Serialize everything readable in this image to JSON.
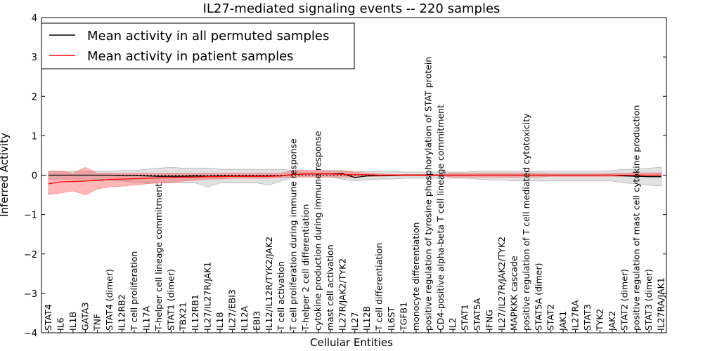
{
  "chart_data": {
    "type": "line",
    "title": "IL27-mediated signaling events -- 220 samples",
    "xlabel": "Cellular Entities",
    "ylabel": "Inferred Activity",
    "ylim": [
      -4,
      4
    ],
    "yticks": [
      "4",
      "3",
      "2",
      "1",
      "0",
      "−1",
      "−2",
      "−3",
      "−4"
    ],
    "ytick_values": [
      4,
      3,
      2,
      1,
      0,
      -1,
      -2,
      -3,
      -4
    ],
    "legend_position": "top-left",
    "legend": [
      {
        "label": "Mean activity in all permuted samples",
        "color": "#000000"
      },
      {
        "label": "Mean activity in patient samples",
        "color": "#ff0000"
      }
    ],
    "categories": [
      "STAT4",
      "IL6",
      "IL1B",
      "GATA3",
      "TNF",
      "STAT4 (dimer)",
      "IL12RB2",
      "T cell proliferation",
      "IL17A",
      "T-helper cell lineage commitment",
      "STAT1 (dimer)",
      "TBX21",
      "IL12RB1",
      "IL27/IL27R/JAK1",
      "IL18",
      "IL27/EBI3",
      "IL12A",
      "EBI3",
      "IL12/IL12R/TYK2/JAK2",
      "T cell activation",
      "T cell proliferation during immune response",
      "T-helper 2 cell differentiation",
      "cytokine production during immune response",
      "mast cell activation",
      "IL27R/JAK2/TYK2",
      "IL27",
      "IL12B",
      "T cell differentiation",
      "IL6ST",
      "TGFB1",
      "monocyte differentiation",
      "positive regulation of tyrosine phosphorylation of STAT protein",
      "CD4-positive alpha-beta T cell lineage commitment",
      "IL2",
      "STAT1",
      "STAT5A",
      "IFNG",
      "IL27/IL27R/JAK2/TYK2",
      "MAPKKK cascade",
      "positive regulation of T cell mediated cytotoxicity",
      "STAT5A (dimer)",
      "STAT2",
      "JAK1",
      "IL27RA",
      "STAT3",
      "TYK2",
      "JAK2",
      "STAT2 (dimer)",
      "positive regulation of mast cell cytokine production",
      "STAT3 (dimer)",
      "IL27RA/JAK1"
    ],
    "series": [
      {
        "name": "Mean activity in all permuted samples",
        "color": "#000000",
        "values": [
          0,
          0,
          0,
          0,
          0,
          0,
          -0.01,
          -0.01,
          -0.02,
          -0.03,
          -0.03,
          -0.03,
          -0.02,
          -0.03,
          -0.02,
          -0.02,
          -0.02,
          -0.02,
          -0.02,
          -0.02,
          0.02,
          0.03,
          0.03,
          0.03,
          0.04,
          -0.06,
          -0.02,
          -0.01,
          -0.01,
          0,
          0,
          0,
          0,
          0,
          0,
          0,
          0,
          0,
          0,
          0,
          0,
          0,
          0,
          0,
          0,
          0,
          0,
          -0.02,
          -0.03,
          -0.04,
          -0.04
        ],
        "band_upper": [
          0.1,
          0.1,
          0.1,
          0.1,
          0.1,
          0.1,
          0.12,
          0.12,
          0.15,
          0.18,
          0.2,
          0.18,
          0.18,
          0.18,
          0.15,
          0.15,
          0.15,
          0.15,
          0.15,
          0.15,
          0.12,
          0.12,
          0.12,
          0.12,
          0.12,
          0.08,
          0.1,
          0.1,
          0.1,
          0.08,
          0.08,
          0.08,
          0.08,
          0.08,
          0.08,
          0.1,
          0.1,
          0.1,
          0.1,
          0.1,
          0.1,
          0.1,
          0.1,
          0.1,
          0.1,
          0.1,
          0.12,
          0.15,
          0.15,
          0.18,
          0.2
        ],
        "band_lower": [
          -0.1,
          -0.1,
          -0.1,
          -0.1,
          -0.1,
          -0.12,
          -0.15,
          -0.18,
          -0.2,
          -0.2,
          -0.2,
          -0.2,
          -0.2,
          -0.3,
          -0.2,
          -0.2,
          -0.2,
          -0.2,
          -0.25,
          -0.15,
          -0.05,
          -0.05,
          -0.05,
          -0.05,
          -0.1,
          -0.15,
          -0.12,
          -0.1,
          -0.1,
          -0.08,
          -0.08,
          -0.08,
          -0.08,
          -0.08,
          -0.08,
          -0.1,
          -0.12,
          -0.12,
          -0.15,
          -0.15,
          -0.15,
          -0.15,
          -0.15,
          -0.15,
          -0.15,
          -0.15,
          -0.15,
          -0.2,
          -0.22,
          -0.25,
          -0.28
        ]
      },
      {
        "name": "Mean activity in patient samples",
        "color": "#ff0000",
        "values": [
          -0.22,
          -0.17,
          -0.16,
          -0.15,
          -0.13,
          -0.11,
          -0.1,
          -0.09,
          -0.08,
          -0.07,
          -0.06,
          -0.05,
          -0.05,
          -0.04,
          -0.04,
          -0.03,
          -0.03,
          -0.03,
          -0.03,
          -0.02,
          0.02,
          0.03,
          0.03,
          0.03,
          0.02,
          0.01,
          0.01,
          0,
          0,
          0,
          0,
          0,
          0,
          0,
          0,
          0,
          0,
          0,
          0,
          0,
          0,
          0,
          0,
          0,
          0,
          0,
          0,
          0,
          0,
          0,
          0
        ],
        "band_upper": [
          0.1,
          0.1,
          0.05,
          0.2,
          0.05,
          0.05,
          0.05,
          0.05,
          0.05,
          0.05,
          0.05,
          0.05,
          0.05,
          0.05,
          0.05,
          0.05,
          0.05,
          0.05,
          0.05,
          0.05,
          0.12,
          0.12,
          0.12,
          0.1,
          0.1,
          0.08,
          0.05,
          0.03,
          0.02,
          0.02,
          0.02,
          0.02,
          0.02,
          0.05,
          0.05,
          0.05,
          0.05,
          0.05,
          0.05,
          0.05,
          0.05,
          0.03,
          0.03,
          0.03,
          0.03,
          0.03,
          0.04,
          0.05,
          0.06,
          0.06,
          0.06
        ],
        "band_lower": [
          -0.5,
          -0.45,
          -0.4,
          -0.5,
          -0.35,
          -0.3,
          -0.28,
          -0.25,
          -0.22,
          -0.2,
          -0.18,
          -0.15,
          -0.13,
          -0.1,
          -0.1,
          -0.08,
          -0.08,
          -0.08,
          -0.08,
          -0.06,
          -0.05,
          -0.05,
          -0.05,
          -0.05,
          -0.05,
          -0.05,
          -0.03,
          -0.03,
          -0.02,
          -0.02,
          -0.02,
          -0.02,
          -0.02,
          -0.05,
          -0.05,
          -0.05,
          -0.05,
          -0.05,
          -0.05,
          -0.05,
          -0.05,
          -0.03,
          -0.03,
          -0.03,
          -0.03,
          -0.03,
          -0.03,
          -0.03,
          -0.03,
          -0.03,
          -0.03
        ]
      }
    ]
  }
}
